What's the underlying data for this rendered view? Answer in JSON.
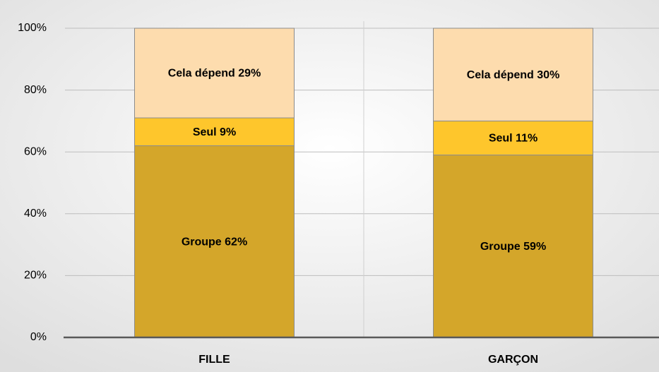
{
  "chart_data": {
    "type": "stacked_bar",
    "categories": [
      "FILLE",
      "GARÇON"
    ],
    "series": [
      {
        "color": "#d4a62a",
        "values": [
          62,
          59
        ],
        "value_labels": [
          "Groupe 62%",
          "Groupe 59%"
        ]
      },
      {
        "color": "#fec62c",
        "values": [
          9,
          11
        ],
        "value_labels": [
          "Seul 9%",
          "Seul 11%"
        ]
      },
      {
        "color": "#fddcae",
        "values": [
          29,
          30
        ],
        "value_labels": [
          "Cela dépend 29%",
          "Cela dépend 30%"
        ]
      }
    ],
    "ylim": [
      0,
      100
    ],
    "yticks": [
      {
        "value": 0,
        "label": "0%"
      },
      {
        "value": 20,
        "label": "20%"
      },
      {
        "value": 40,
        "label": "40%"
      },
      {
        "value": 60,
        "label": "60%"
      },
      {
        "value": 80,
        "label": "80%"
      },
      {
        "value": 100,
        "label": "100%"
      }
    ],
    "grid": true
  }
}
